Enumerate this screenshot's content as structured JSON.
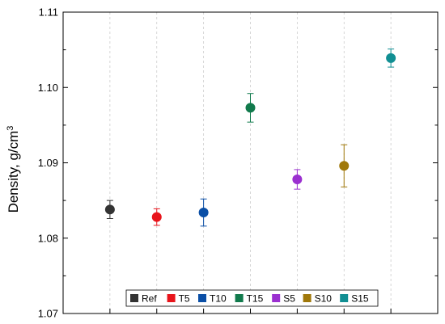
{
  "chart_data": {
    "type": "scatter",
    "title": "",
    "xlabel": "",
    "ylabel": "Density, g/cm",
    "ylabel_superscript": "3",
    "ylim": [
      1.07,
      1.11
    ],
    "yticks": [
      "1.07",
      "1.08",
      "1.09",
      "1.10",
      "1.11"
    ],
    "grid": "vertical dashed",
    "legend_position": "bottom-center",
    "series": [
      {
        "name": "Ref",
        "value": 1.0838,
        "error": 0.0012,
        "color": "#333333"
      },
      {
        "name": "T5",
        "value": 1.0828,
        "error": 0.0011,
        "color": "#e8141b"
      },
      {
        "name": "T10",
        "value": 1.0834,
        "error": 0.0018,
        "color": "#0b4fa6"
      },
      {
        "name": "T15",
        "value": 1.0973,
        "error": 0.0019,
        "color": "#117a4c"
      },
      {
        "name": "S5",
        "value": 1.0878,
        "error": 0.0013,
        "color": "#9b30d0"
      },
      {
        "name": "S10",
        "value": 1.0896,
        "error": 0.0028,
        "color": "#a0780a"
      },
      {
        "name": "S15",
        "value": 1.1039,
        "error": 0.0012,
        "color": "#118f93"
      }
    ]
  }
}
